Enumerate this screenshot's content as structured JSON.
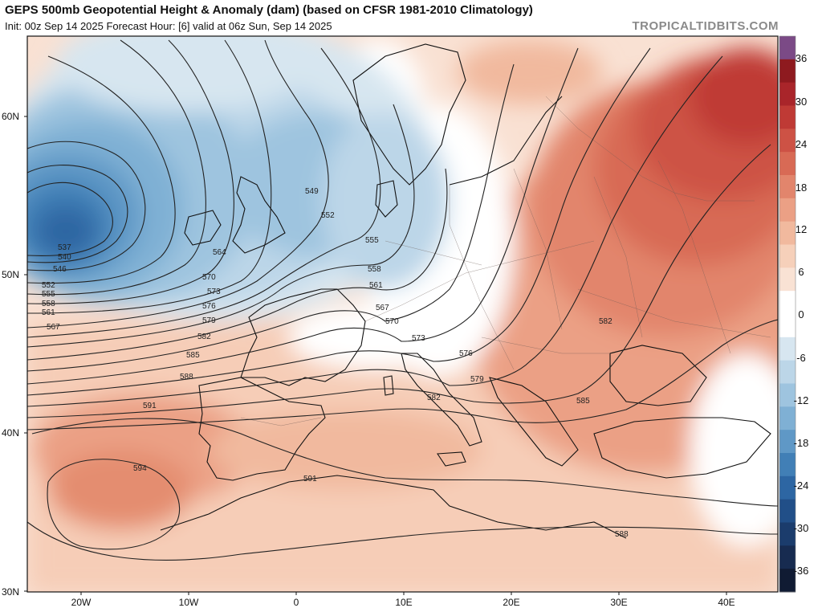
{
  "header": {
    "title": "GEPS 500mb Geopotential Height & Anomaly (dam) (based on CFSR 1981-2010 Climatology)",
    "subtitle": "Init: 00z Sep 14 2025   Forecast Hour: [6]   valid at 06z Sun, Sep 14 2025",
    "credit": "TROPICALTIDBITS.COM"
  },
  "axes": {
    "lat_labels": [
      "60N",
      "50N",
      "40N",
      "30N"
    ],
    "lon_labels": [
      "20W",
      "10W",
      "0",
      "10E",
      "20E",
      "30E",
      "40E"
    ]
  },
  "colorbar": {
    "labels": [
      "36",
      "30",
      "24",
      "18",
      "12",
      "6",
      "0",
      "-6",
      "-12",
      "-18",
      "-24",
      "-30",
      "-36"
    ],
    "colors": [
      "#7b4a86",
      "#8e1a1f",
      "#a9252a",
      "#bf3a35",
      "#cd5245",
      "#d86a55",
      "#e2856c",
      "#eba085",
      "#f1b99e",
      "#f6d0ba",
      "#f9e2d4",
      "#ffffff",
      "#ffffff",
      "#d7e6f0",
      "#bcd6e8",
      "#9ec4df",
      "#7fb0d4",
      "#5f98c6",
      "#417fb6",
      "#2d66a3",
      "#214f88",
      "#1b3c6c",
      "#172b50",
      "#101b33"
    ]
  },
  "contours": {
    "labels": [
      "537",
      "540",
      "546",
      "552",
      "555",
      "558",
      "561",
      "567",
      "549",
      "552",
      "555",
      "558",
      "561",
      "564",
      "567",
      "570",
      "570",
      "573",
      "573",
      "576",
      "576",
      "579",
      "579",
      "582",
      "582",
      "582",
      "585",
      "585",
      "588",
      "588",
      "591",
      "591",
      "594"
    ]
  }
}
